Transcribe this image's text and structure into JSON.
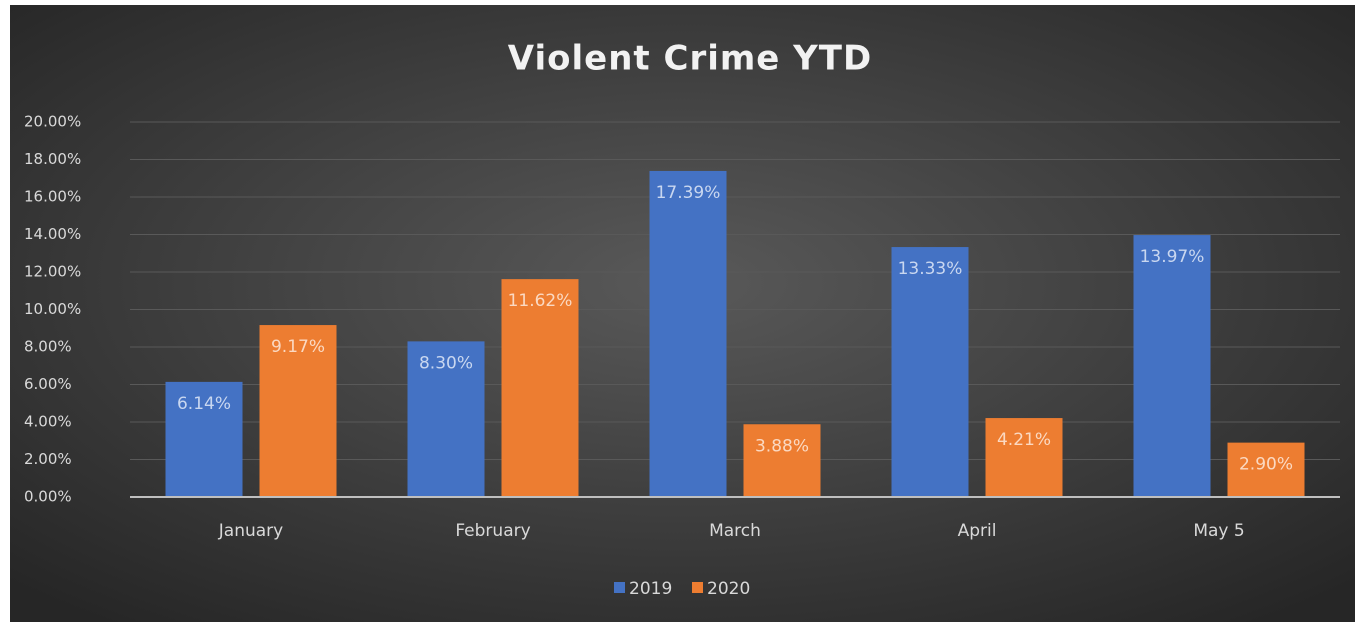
{
  "chart_data": {
    "type": "bar",
    "title": "Violent Crime YTD",
    "categories": [
      "January",
      "February",
      "March",
      "April",
      "May 5"
    ],
    "series": [
      {
        "name": "2019",
        "color": "#4472c4",
        "values": [
          6.14,
          8.3,
          17.39,
          13.33,
          13.97
        ],
        "value_labels": [
          "6.14%",
          "8.30%",
          "17.39%",
          "13.33%",
          "13.97%"
        ]
      },
      {
        "name": "2020",
        "color": "#ed7d31",
        "values": [
          9.17,
          11.62,
          3.88,
          4.21,
          2.9
        ],
        "value_labels": [
          "9.17%",
          "11.62%",
          "3.88%",
          "4.21%",
          "2.90%"
        ]
      }
    ],
    "ylim": [
      0,
      20
    ],
    "yticks": [
      {
        "value": 0,
        "label": "0.00%"
      },
      {
        "value": 2,
        "label": "2.00%"
      },
      {
        "value": 4,
        "label": "4.00%"
      },
      {
        "value": 6,
        "label": "6.00%"
      },
      {
        "value": 8,
        "label": "8.00%"
      },
      {
        "value": 10,
        "label": "10.00%"
      },
      {
        "value": 12,
        "label": "12.00%"
      },
      {
        "value": 14,
        "label": "14.00%"
      },
      {
        "value": 16,
        "label": "16.00%"
      },
      {
        "value": 18,
        "label": "18.00%"
      },
      {
        "value": 20,
        "label": "20.00%"
      }
    ],
    "grid": true,
    "legend": "bottom"
  }
}
